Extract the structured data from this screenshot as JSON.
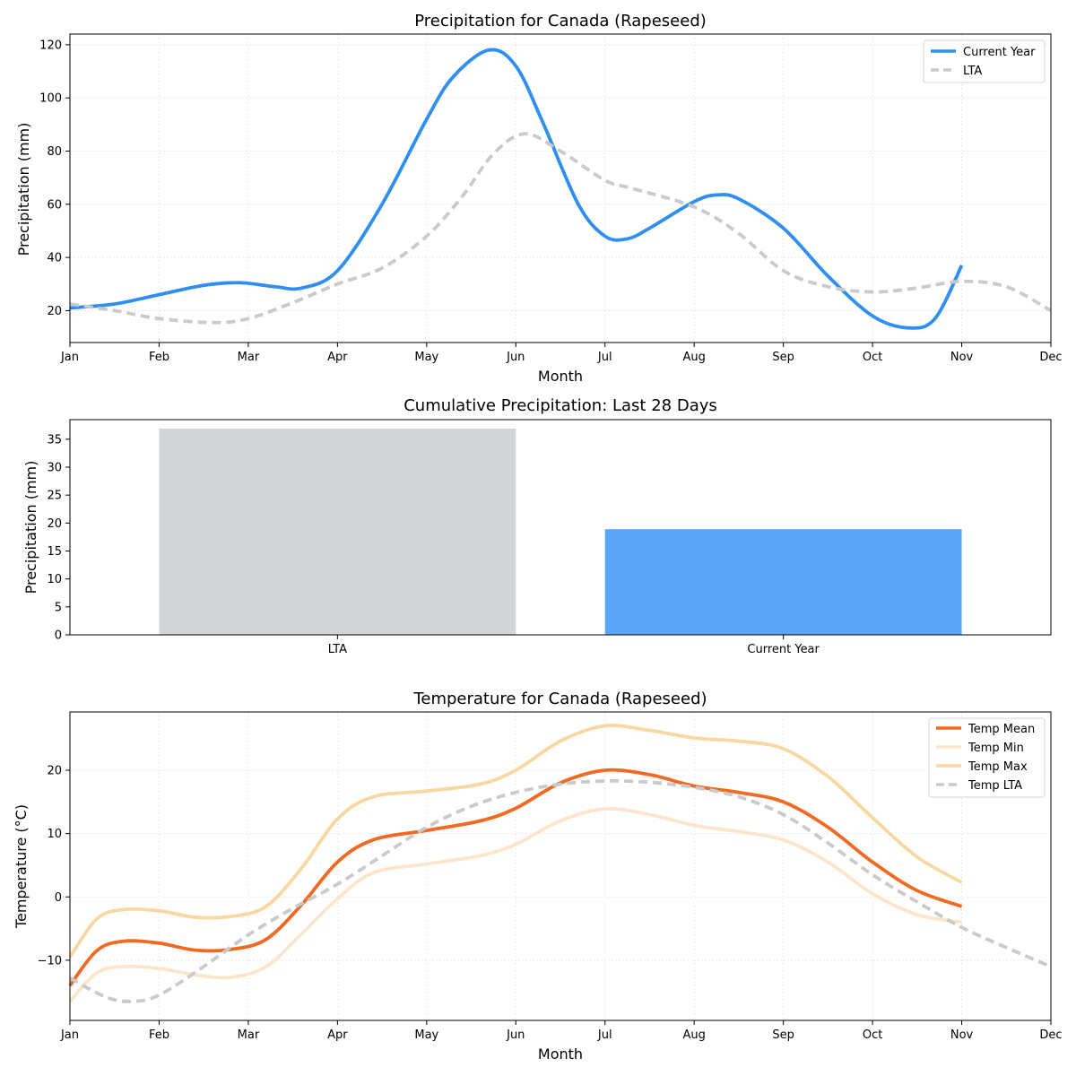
{
  "chart_data": [
    {
      "type": "line",
      "title": "Precipitation for Canada (Rapeseed)",
      "xlabel": "Month",
      "ylabel": "Precipitation (mm)",
      "xticks": [
        "Jan",
        "Feb",
        "Mar",
        "Apr",
        "May",
        "Jun",
        "Jul",
        "Aug",
        "Sep",
        "Oct",
        "Nov",
        "Dec"
      ],
      "xlim": [
        0,
        11
      ],
      "ylim": [
        8,
        124
      ],
      "yticks": [
        20,
        40,
        60,
        80,
        100,
        120
      ],
      "grid": true,
      "legend_position": "top-right",
      "series": [
        {
          "name": "Current Year",
          "color": "#2f8ff0",
          "style": "solid",
          "x": [
            0,
            0.5,
            1,
            1.5,
            1.9,
            2.3,
            2.6,
            3,
            3.5,
            4,
            4.3,
            4.7,
            5,
            5.3,
            5.7,
            6,
            6.25,
            6.5,
            7,
            7.25,
            7.5,
            8,
            8.5,
            9,
            9.4,
            9.7,
            10
          ],
          "y": [
            21,
            22.5,
            26,
            29.5,
            30.5,
            29,
            28.5,
            35,
            60,
            92,
            108,
            118,
            112,
            91,
            60,
            48,
            47,
            51,
            61,
            63.5,
            62,
            51,
            33,
            18,
            13.5,
            17,
            37
          ]
        },
        {
          "name": "LTA",
          "color": "#c8cacc",
          "style": "dashed",
          "x": [
            0,
            0.5,
            1,
            1.6,
            2,
            2.5,
            3,
            3.5,
            4,
            4.4,
            4.75,
            5.1,
            5.5,
            6,
            6.3,
            7,
            7.5,
            8,
            8.5,
            9,
            9.5,
            10,
            10.5,
            11
          ],
          "y": [
            22.5,
            20,
            17,
            15.5,
            17,
            23,
            30,
            36,
            48,
            63,
            79,
            86.5,
            80,
            69,
            66,
            59,
            49,
            35,
            29,
            27,
            28.5,
            31,
            29,
            20
          ]
        }
      ]
    },
    {
      "type": "bar",
      "title": "Cumulative Precipitation: Last 28 Days",
      "ylabel": "Precipitation (mm)",
      "categories": [
        "LTA",
        "Current Year"
      ],
      "values": [
        36.9,
        18.9
      ],
      "colors": [
        "#d1d5d8",
        "#5aa5f8"
      ],
      "ylim": [
        0,
        38.5
      ],
      "yticks": [
        0,
        5,
        10,
        15,
        20,
        25,
        30,
        35
      ],
      "grid": false
    },
    {
      "type": "line",
      "title": "Temperature for Canada (Rapeseed)",
      "xlabel": "Month",
      "ylabel": "Temperature (°C)",
      "xticks": [
        "Jan",
        "Feb",
        "Mar",
        "Apr",
        "May",
        "Jun",
        "Jul",
        "Aug",
        "Sep",
        "Oct",
        "Nov",
        "Dec"
      ],
      "xlim": [
        0,
        11
      ],
      "ylim": [
        -19.5,
        29.2
      ],
      "yticks": [
        -10,
        0,
        10,
        20
      ],
      "ytick_labels": [
        "−10",
        "0",
        "10",
        "20"
      ],
      "grid": true,
      "legend_position": "top-right",
      "series": [
        {
          "name": "Temp Mean",
          "color": "#f26a21",
          "style": "solid",
          "x": [
            0,
            0.3,
            0.6,
            1,
            1.4,
            1.8,
            2.2,
            2.6,
            3,
            3.4,
            4,
            4.6,
            5,
            5.5,
            6,
            6.5,
            7,
            7.5,
            8,
            8.5,
            9,
            9.5,
            10
          ],
          "y": [
            -14,
            -8.5,
            -7,
            -7.3,
            -8.4,
            -8.3,
            -6.7,
            -1.2,
            5.5,
            9,
            10.5,
            12,
            14,
            18,
            20,
            19.3,
            17.5,
            16.5,
            15,
            11,
            5.5,
            1,
            -1.5
          ]
        },
        {
          "name": "Temp Min",
          "color": "#fde5cc",
          "style": "solid",
          "x": [
            0,
            0.3,
            0.6,
            1,
            1.4,
            1.8,
            2.2,
            2.6,
            3,
            3.4,
            4,
            4.6,
            5,
            5.5,
            6,
            6.5,
            7,
            7.5,
            8,
            8.5,
            9,
            9.5,
            10
          ],
          "y": [
            -16.5,
            -12,
            -11,
            -11.3,
            -12.3,
            -12.7,
            -11,
            -5.8,
            -0.3,
            3.8,
            5.2,
            6.5,
            8.3,
            12,
            13.9,
            13,
            11.3,
            10.3,
            9,
            5.5,
            0.5,
            -2.8,
            -4
          ]
        },
        {
          "name": "Temp Max",
          "color": "#f9d7a0",
          "style": "solid",
          "x": [
            0,
            0.3,
            0.6,
            1,
            1.4,
            1.8,
            2.2,
            2.6,
            3,
            3.4,
            4,
            4.6,
            5,
            5.5,
            6,
            6.5,
            7,
            7.5,
            8,
            8.5,
            9,
            9.5,
            10
          ],
          "y": [
            -9.5,
            -3.5,
            -2,
            -2.2,
            -3.2,
            -3.1,
            -1.5,
            4.6,
            12.3,
            15.8,
            16.7,
            17.8,
            20,
            24.6,
            27,
            26.3,
            25.1,
            24.6,
            23.4,
            19,
            12.5,
            6.3,
            2.3
          ]
        },
        {
          "name": "Temp LTA",
          "color": "#c8cacc",
          "style": "dashed",
          "x": [
            0,
            0.4,
            0.7,
            1,
            1.5,
            2,
            2.5,
            3,
            3.5,
            4,
            4.5,
            5,
            5.5,
            6,
            6.5,
            7,
            7.5,
            8,
            8.5,
            9,
            9.5,
            10,
            10.5,
            11
          ],
          "y": [
            -12.8,
            -15.8,
            -16.5,
            -15.5,
            -11,
            -6,
            -1.8,
            2,
            6.5,
            11,
            14.3,
            16.5,
            17.8,
            18.3,
            18.1,
            17.3,
            15.8,
            13,
            8.5,
            3.5,
            -0.8,
            -4.8,
            -8,
            -11
          ]
        }
      ]
    }
  ]
}
